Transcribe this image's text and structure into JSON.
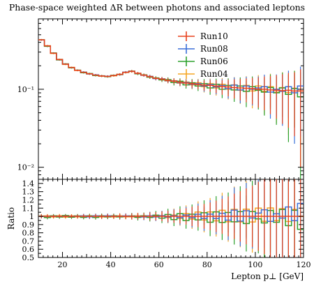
{
  "chart_data": [
    {
      "type": "line",
      "title": "Phase-space weighted ΔR between photons and associated leptons",
      "ylabel": "",
      "xlabel": "",
      "xlim": [
        10,
        120
      ],
      "ylim": [
        0.007,
        0.8
      ],
      "yscale": "log",
      "y_ticks": [
        {
          "value": 0.1,
          "label": "10⁻¹"
        },
        {
          "value": 0.01,
          "label": "10⁻²"
        }
      ],
      "legend_position": "top-right",
      "x": [
        10.0,
        12.5,
        15.0,
        17.5,
        20.0,
        22.5,
        25.0,
        27.5,
        30.0,
        32.5,
        35.0,
        37.5,
        40.0,
        42.5,
        45.0,
        47.5,
        50.0,
        52.5,
        55.0,
        57.5,
        60.0,
        62.5,
        65.0,
        67.5,
        70.0,
        72.5,
        75.0,
        77.5,
        80.0,
        82.5,
        85.0,
        87.5,
        90.0,
        92.5,
        95.0,
        97.5,
        100.0,
        102.5,
        105.0,
        107.5,
        110.0,
        112.5,
        115.0,
        117.5
      ],
      "x_width": 2.5,
      "series": [
        {
          "name": "Run10",
          "color": "#e8401c",
          "values": [
            0.43,
            0.36,
            0.29,
            0.24,
            0.21,
            0.19,
            0.175,
            0.165,
            0.158,
            0.152,
            0.148,
            0.146,
            0.15,
            0.155,
            0.165,
            0.17,
            0.16,
            0.152,
            0.145,
            0.138,
            0.135,
            0.13,
            0.127,
            0.123,
            0.12,
            0.118,
            0.115,
            0.113,
            0.112,
            0.11,
            0.108,
            0.107,
            0.105,
            0.104,
            0.103,
            0.102,
            0.1,
            0.1,
            0.098,
            0.097,
            0.096,
            0.097,
            0.095,
            0.095
          ],
          "errors": [
            0.01,
            0.008,
            0.006,
            0.005,
            0.004,
            0.004,
            0.004,
            0.004,
            0.004,
            0.004,
            0.004,
            0.004,
            0.004,
            0.005,
            0.005,
            0.006,
            0.006,
            0.006,
            0.007,
            0.007,
            0.008,
            0.009,
            0.01,
            0.011,
            0.012,
            0.014,
            0.015,
            0.017,
            0.019,
            0.021,
            0.023,
            0.026,
            0.029,
            0.032,
            0.035,
            0.038,
            0.042,
            0.046,
            0.05,
            0.055,
            0.06,
            0.065,
            0.07,
            0.085
          ]
        },
        {
          "name": "Run08",
          "color": "#3a6fd8",
          "values": [
            0.43,
            0.36,
            0.29,
            0.24,
            0.21,
            0.19,
            0.175,
            0.166,
            0.157,
            0.153,
            0.148,
            0.147,
            0.15,
            0.155,
            0.166,
            0.17,
            0.16,
            0.151,
            0.146,
            0.137,
            0.136,
            0.129,
            0.128,
            0.121,
            0.122,
            0.116,
            0.118,
            0.11,
            0.115,
            0.107,
            0.112,
            0.102,
            0.113,
            0.098,
            0.11,
            0.1,
            0.104,
            0.108,
            0.092,
            0.1,
            0.094,
            0.108,
            0.09,
            0.11
          ],
          "errors": [
            0.01,
            0.008,
            0.006,
            0.005,
            0.004,
            0.004,
            0.004,
            0.004,
            0.004,
            0.004,
            0.004,
            0.004,
            0.004,
            0.005,
            0.005,
            0.006,
            0.006,
            0.006,
            0.007,
            0.007,
            0.008,
            0.009,
            0.01,
            0.011,
            0.012,
            0.014,
            0.015,
            0.017,
            0.019,
            0.021,
            0.023,
            0.026,
            0.029,
            0.032,
            0.035,
            0.038,
            0.042,
            0.046,
            0.05,
            0.055,
            0.06,
            0.065,
            0.07,
            0.085
          ]
        },
        {
          "name": "Run06",
          "color": "#2ca02c",
          "values": [
            0.43,
            0.355,
            0.292,
            0.238,
            0.212,
            0.188,
            0.176,
            0.163,
            0.159,
            0.15,
            0.149,
            0.145,
            0.151,
            0.154,
            0.165,
            0.171,
            0.158,
            0.153,
            0.143,
            0.14,
            0.132,
            0.133,
            0.122,
            0.127,
            0.114,
            0.121,
            0.11,
            0.118,
            0.104,
            0.116,
            0.1,
            0.112,
            0.098,
            0.11,
            0.094,
            0.108,
            0.097,
            0.092,
            0.105,
            0.09,
            0.104,
            0.086,
            0.102,
            0.08
          ],
          "errors": [
            0.01,
            0.008,
            0.006,
            0.005,
            0.004,
            0.004,
            0.004,
            0.004,
            0.004,
            0.004,
            0.004,
            0.004,
            0.004,
            0.005,
            0.005,
            0.006,
            0.006,
            0.006,
            0.007,
            0.007,
            0.008,
            0.009,
            0.01,
            0.011,
            0.012,
            0.014,
            0.015,
            0.017,
            0.019,
            0.021,
            0.023,
            0.026,
            0.029,
            0.032,
            0.035,
            0.038,
            0.042,
            0.046,
            0.05,
            0.055,
            0.06,
            0.065,
            0.07,
            0.085
          ]
        },
        {
          "name": "Run04",
          "color": "#f5a623",
          "values": [
            0.432,
            0.362,
            0.288,
            0.242,
            0.208,
            0.191,
            0.174,
            0.166,
            0.157,
            0.153,
            0.147,
            0.147,
            0.149,
            0.156,
            0.164,
            0.169,
            0.161,
            0.151,
            0.146,
            0.138,
            0.136,
            0.128,
            0.129,
            0.12,
            0.124,
            0.114,
            0.121,
            0.108,
            0.118,
            0.104,
            0.116,
            0.1,
            0.114,
            0.097,
            0.112,
            0.095,
            0.11,
            0.094,
            0.108,
            0.092,
            0.105,
            0.091,
            0.103,
            0.095
          ],
          "errors": [
            0.01,
            0.008,
            0.006,
            0.005,
            0.004,
            0.004,
            0.004,
            0.004,
            0.004,
            0.004,
            0.004,
            0.004,
            0.004,
            0.005,
            0.005,
            0.006,
            0.006,
            0.006,
            0.007,
            0.007,
            0.008,
            0.009,
            0.01,
            0.011,
            0.012,
            0.014,
            0.015,
            0.017,
            0.019,
            0.021,
            0.023,
            0.026,
            0.029,
            0.032,
            0.035,
            0.038,
            0.042,
            0.046,
            0.05,
            0.055,
            0.06,
            0.065,
            0.07,
            0.085
          ]
        }
      ]
    },
    {
      "type": "line",
      "title": "",
      "ylabel": "Ratio",
      "xlabel": "Lepton p⊥ [GeV]",
      "xlim": [
        10,
        120
      ],
      "ylim": [
        0.5,
        1.45
      ],
      "x_ticks": [
        20,
        40,
        60,
        80,
        100,
        120
      ],
      "y_ticks": [
        0.5,
        0.6,
        0.7,
        0.8,
        0.9,
        1,
        1.1,
        1.2,
        1.3,
        1.4
      ],
      "reference_series": "Run10"
    }
  ]
}
